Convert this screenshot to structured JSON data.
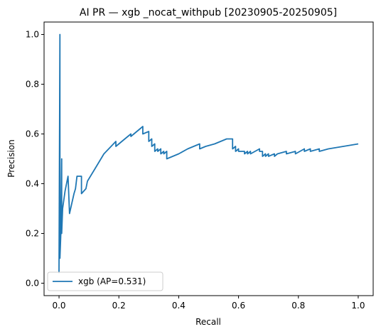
{
  "chart_data": {
    "type": "line",
    "title": "AI PR — xgb _nocat_withpub [20230905-20250905]",
    "xlabel": "Recall",
    "ylabel": "Precision",
    "xlim": [
      -0.05,
      1.05
    ],
    "ylim": [
      -0.05,
      1.05
    ],
    "xticks": [
      "0.0",
      "0.2",
      "0.4",
      "0.6",
      "0.8",
      "1.0"
    ],
    "yticks": [
      "0.0",
      "0.2",
      "0.4",
      "0.6",
      "0.8",
      "1.0"
    ],
    "xtick_values": [
      0.0,
      0.2,
      0.4,
      0.6,
      0.8,
      1.0
    ],
    "ytick_values": [
      0.0,
      0.2,
      0.4,
      0.6,
      0.8,
      1.0
    ],
    "grid": false,
    "legend_position": "lower-left",
    "series": [
      {
        "name": "xgb (AP=0.531)",
        "color": "#1f77b4",
        "x": [
          0.0,
          0.003,
          0.003,
          0.006,
          0.006,
          0.009,
          0.009,
          0.012,
          0.012,
          0.02,
          0.03,
          0.035,
          0.035,
          0.05,
          0.055,
          0.06,
          0.06,
          0.07,
          0.075,
          0.075,
          0.09,
          0.095,
          0.095,
          0.12,
          0.15,
          0.19,
          0.19,
          0.22,
          0.24,
          0.24,
          0.27,
          0.28,
          0.28,
          0.3,
          0.3,
          0.31,
          0.31,
          0.32,
          0.32,
          0.33,
          0.33,
          0.34,
          0.34,
          0.35,
          0.35,
          0.36,
          0.36,
          0.4,
          0.43,
          0.43,
          0.47,
          0.47,
          0.49,
          0.49,
          0.52,
          0.56,
          0.56,
          0.58,
          0.58,
          0.59,
          0.59,
          0.6,
          0.6,
          0.61,
          0.61,
          0.62,
          0.62,
          0.63,
          0.63,
          0.64,
          0.64,
          0.67,
          0.67,
          0.68,
          0.68,
          0.69,
          0.69,
          0.7,
          0.7,
          0.72,
          0.72,
          0.73,
          0.73,
          0.76,
          0.76,
          0.79,
          0.79,
          0.82,
          0.82,
          0.84,
          0.84,
          0.87,
          0.87,
          0.9,
          1.0,
          1.0
        ],
        "y": [
          0.04,
          1.0,
          0.1,
          0.2,
          0.2,
          0.5,
          0.2,
          0.3,
          0.3,
          0.37,
          0.43,
          0.28,
          0.28,
          0.36,
          0.38,
          0.43,
          0.43,
          0.43,
          0.43,
          0.36,
          0.38,
          0.41,
          0.41,
          0.46,
          0.52,
          0.57,
          0.55,
          0.58,
          0.6,
          0.59,
          0.62,
          0.63,
          0.6,
          0.61,
          0.57,
          0.58,
          0.55,
          0.56,
          0.53,
          0.54,
          0.53,
          0.54,
          0.52,
          0.53,
          0.52,
          0.53,
          0.5,
          0.52,
          0.54,
          0.54,
          0.56,
          0.54,
          0.55,
          0.55,
          0.56,
          0.58,
          0.58,
          0.58,
          0.54,
          0.55,
          0.53,
          0.54,
          0.53,
          0.53,
          0.53,
          0.53,
          0.52,
          0.53,
          0.52,
          0.53,
          0.52,
          0.54,
          0.53,
          0.53,
          0.51,
          0.52,
          0.51,
          0.52,
          0.51,
          0.52,
          0.51,
          0.52,
          0.52,
          0.53,
          0.52,
          0.53,
          0.52,
          0.54,
          0.53,
          0.54,
          0.53,
          0.54,
          0.53,
          0.54,
          0.56,
          0.56
        ]
      }
    ]
  }
}
